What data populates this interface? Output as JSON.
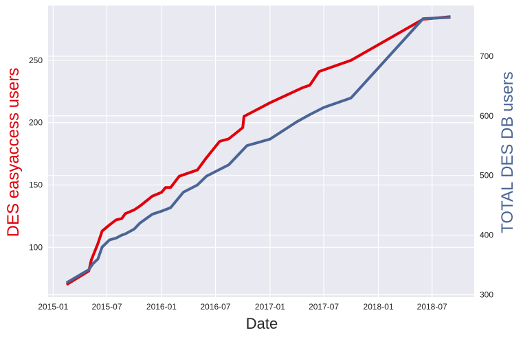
{
  "chart_data": {
    "type": "line",
    "xlabel": "Date",
    "x_ticks": [
      "2015-01",
      "2015-07",
      "2016-01",
      "2016-07",
      "2017-01",
      "2017-07",
      "2018-01",
      "2018-07"
    ],
    "xlim": [
      "2014-12-15",
      "2018-11-20"
    ],
    "left_axis": {
      "label": "DES easyaccess users",
      "color": "#e0000a",
      "ticks": [
        100,
        150,
        200,
        250
      ],
      "ylim": [
        60,
        294
      ]
    },
    "right_axis": {
      "label": "TOTAL DES DB users",
      "color": "#4a6595",
      "ticks": [
        300,
        400,
        500,
        600,
        700
      ],
      "ylim": [
        296,
        785
      ]
    },
    "series": [
      {
        "name": "DES easyaccess users",
        "axis": "left",
        "color": "#e0000a",
        "points": [
          [
            "2015-02-15",
            70
          ],
          [
            "2015-05-01",
            81
          ],
          [
            "2015-05-10",
            90
          ],
          [
            "2015-06-01",
            103
          ],
          [
            "2015-06-15",
            113
          ],
          [
            "2015-07-10",
            118
          ],
          [
            "2015-08-01",
            122
          ],
          [
            "2015-08-20",
            123
          ],
          [
            "2015-09-01",
            127
          ],
          [
            "2015-10-01",
            130
          ],
          [
            "2015-10-20",
            133
          ],
          [
            "2015-12-01",
            141
          ],
          [
            "2016-01-01",
            144
          ],
          [
            "2016-01-15",
            148
          ],
          [
            "2016-02-01",
            148
          ],
          [
            "2016-03-01",
            157
          ],
          [
            "2016-05-01",
            162
          ],
          [
            "2016-06-01",
            172
          ],
          [
            "2016-07-15",
            185
          ],
          [
            "2016-08-15",
            187
          ],
          [
            "2016-10-01",
            196
          ],
          [
            "2016-10-05",
            205
          ],
          [
            "2017-01-01",
            216
          ],
          [
            "2017-04-20",
            228
          ],
          [
            "2017-05-15",
            230
          ],
          [
            "2017-06-15",
            241
          ],
          [
            "2017-10-01",
            250
          ],
          [
            "2018-06-01",
            283
          ],
          [
            "2018-09-01",
            285
          ]
        ]
      },
      {
        "name": "TOTAL DES DB users",
        "axis": "right",
        "color": "#4a6595",
        "points": [
          [
            "2015-02-15",
            320
          ],
          [
            "2015-05-01",
            342
          ],
          [
            "2015-05-15",
            352
          ],
          [
            "2015-06-01",
            360
          ],
          [
            "2015-06-15",
            380
          ],
          [
            "2015-07-10",
            392
          ],
          [
            "2015-08-01",
            395
          ],
          [
            "2015-08-20",
            400
          ],
          [
            "2015-09-01",
            402
          ],
          [
            "2015-10-01",
            410
          ],
          [
            "2015-10-20",
            420
          ],
          [
            "2015-12-01",
            435
          ],
          [
            "2016-01-01",
            440
          ],
          [
            "2016-02-01",
            446
          ],
          [
            "2016-03-15",
            472
          ],
          [
            "2016-05-01",
            484
          ],
          [
            "2016-06-01",
            499
          ],
          [
            "2016-08-15",
            518
          ],
          [
            "2016-10-15",
            550
          ],
          [
            "2017-01-01",
            561
          ],
          [
            "2017-04-01",
            590
          ],
          [
            "2017-05-15",
            602
          ],
          [
            "2017-07-01",
            614
          ],
          [
            "2017-10-01",
            630
          ],
          [
            "2018-06-01",
            763
          ],
          [
            "2018-09-01",
            765
          ]
        ]
      }
    ]
  }
}
